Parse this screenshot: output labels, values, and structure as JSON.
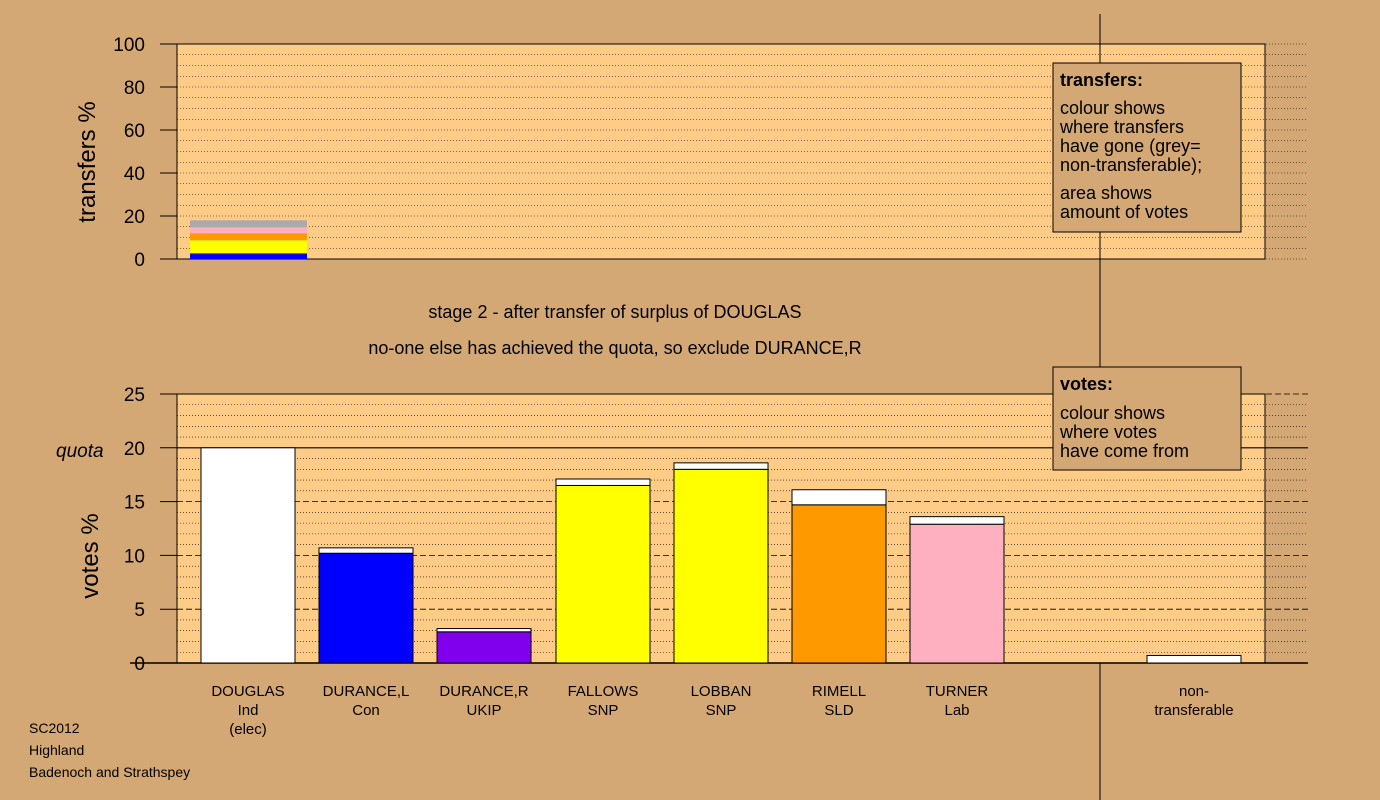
{
  "colors": {
    "background": "#d4a874",
    "plot_area": "#ffcc88",
    "ind": "#ffffff",
    "con": "#0000ff",
    "ukip": "#8000ee",
    "snp": "#ffff00",
    "sld": "#ff9900",
    "lab": "#ffb0c0",
    "nontransferable": "#aaaaaa"
  },
  "top_chart": {
    "ylabel": "transfers %",
    "yticks": [
      "0",
      "20",
      "40",
      "60",
      "80",
      "100"
    ]
  },
  "bottom_chart": {
    "ylabel": "votes %",
    "yticks": [
      "0",
      "5",
      "10",
      "15",
      "20",
      "25"
    ],
    "quota_label": "quota"
  },
  "captions": {
    "line1": "stage 2 - after transfer of surplus of DOUGLAS",
    "line2": "no-one else has achieved the quota, so exclude DURANCE,R"
  },
  "legend_transfers": {
    "title": "transfers:",
    "lines": [
      "colour shows",
      "where transfers",
      "have gone (grey=",
      "non-transferable);"
    ],
    "lines2": [
      "area shows",
      "amount of votes"
    ]
  },
  "legend_votes": {
    "title": "votes:",
    "lines": [
      "colour shows",
      "where votes",
      "have come from"
    ]
  },
  "candidates": [
    {
      "name": "DOUGLAS",
      "party": "Ind",
      "extra": "(elec)"
    },
    {
      "name": "DURANCE,L",
      "party": "Con",
      "extra": ""
    },
    {
      "name": "DURANCE,R",
      "party": "UKIP",
      "extra": ""
    },
    {
      "name": "FALLOWS",
      "party": "SNP",
      "extra": ""
    },
    {
      "name": "LOBBAN",
      "party": "SNP",
      "extra": ""
    },
    {
      "name": "RIMELL",
      "party": "SLD",
      "extra": ""
    },
    {
      "name": "TURNER",
      "party": "Lab",
      "extra": ""
    }
  ],
  "nontransferable_label": [
    "non-",
    "transferable"
  ],
  "footer": [
    "SC2012",
    "Highland",
    "Badenoch and Strathspey"
  ],
  "chart_data": [
    {
      "type": "bar",
      "title": "",
      "ylabel": "transfers %",
      "ylim": [
        0,
        100
      ],
      "stacked": true,
      "categories": [
        "DOUGLAS"
      ],
      "series": [
        {
          "name": "DURANCE,L",
          "color": "#0000ff",
          "values": [
            2.3
          ]
        },
        {
          "name": "DURANCE,R",
          "color": "#8000ee",
          "values": [
            0.4
          ]
        },
        {
          "name": "FALLOWS",
          "color": "#ffff00",
          "values": [
            4.5
          ]
        },
        {
          "name": "LOBBAN",
          "color": "#ffff00",
          "values": [
            1.5
          ]
        },
        {
          "name": "RIMELL",
          "color": "#ff9900",
          "values": [
            3.3
          ]
        },
        {
          "name": "TURNER",
          "color": "#ffb0c0",
          "values": [
            2.7
          ]
        },
        {
          "name": "non-transferable",
          "color": "#aaaaaa",
          "values": [
            3.3
          ]
        }
      ]
    },
    {
      "type": "bar",
      "title": "",
      "ylabel": "votes %",
      "ylim": [
        0,
        25
      ],
      "quota": 20,
      "stacked": true,
      "categories": [
        "DOUGLAS",
        "DURANCE,L",
        "DURANCE,R",
        "FALLOWS",
        "LOBBAN",
        "RIMELL",
        "TURNER",
        "non-transferable"
      ],
      "bars": [
        {
          "category": "DOUGLAS",
          "first_pref": 20.0,
          "first_color": "#ffffff",
          "transfer": 0
        },
        {
          "category": "DURANCE,L",
          "first_pref": 10.2,
          "first_color": "#0000ff",
          "transfer": 0.5
        },
        {
          "category": "DURANCE,R",
          "first_pref": 2.9,
          "first_color": "#8000ee",
          "transfer": 0.3
        },
        {
          "category": "FALLOWS",
          "first_pref": 16.5,
          "first_color": "#ffff00",
          "transfer": 0.6
        },
        {
          "category": "LOBBAN",
          "first_pref": 18.0,
          "first_color": "#ffff00",
          "transfer": 0.6
        },
        {
          "category": "RIMELL",
          "first_pref": 14.7,
          "first_color": "#ff9900",
          "transfer": 1.4
        },
        {
          "category": "TURNER",
          "first_pref": 12.9,
          "first_color": "#ffb0c0",
          "transfer": 0.7
        },
        {
          "category": "non-transferable",
          "first_pref": 0,
          "first_color": "#ffffff",
          "transfer": 0.7
        }
      ]
    }
  ]
}
